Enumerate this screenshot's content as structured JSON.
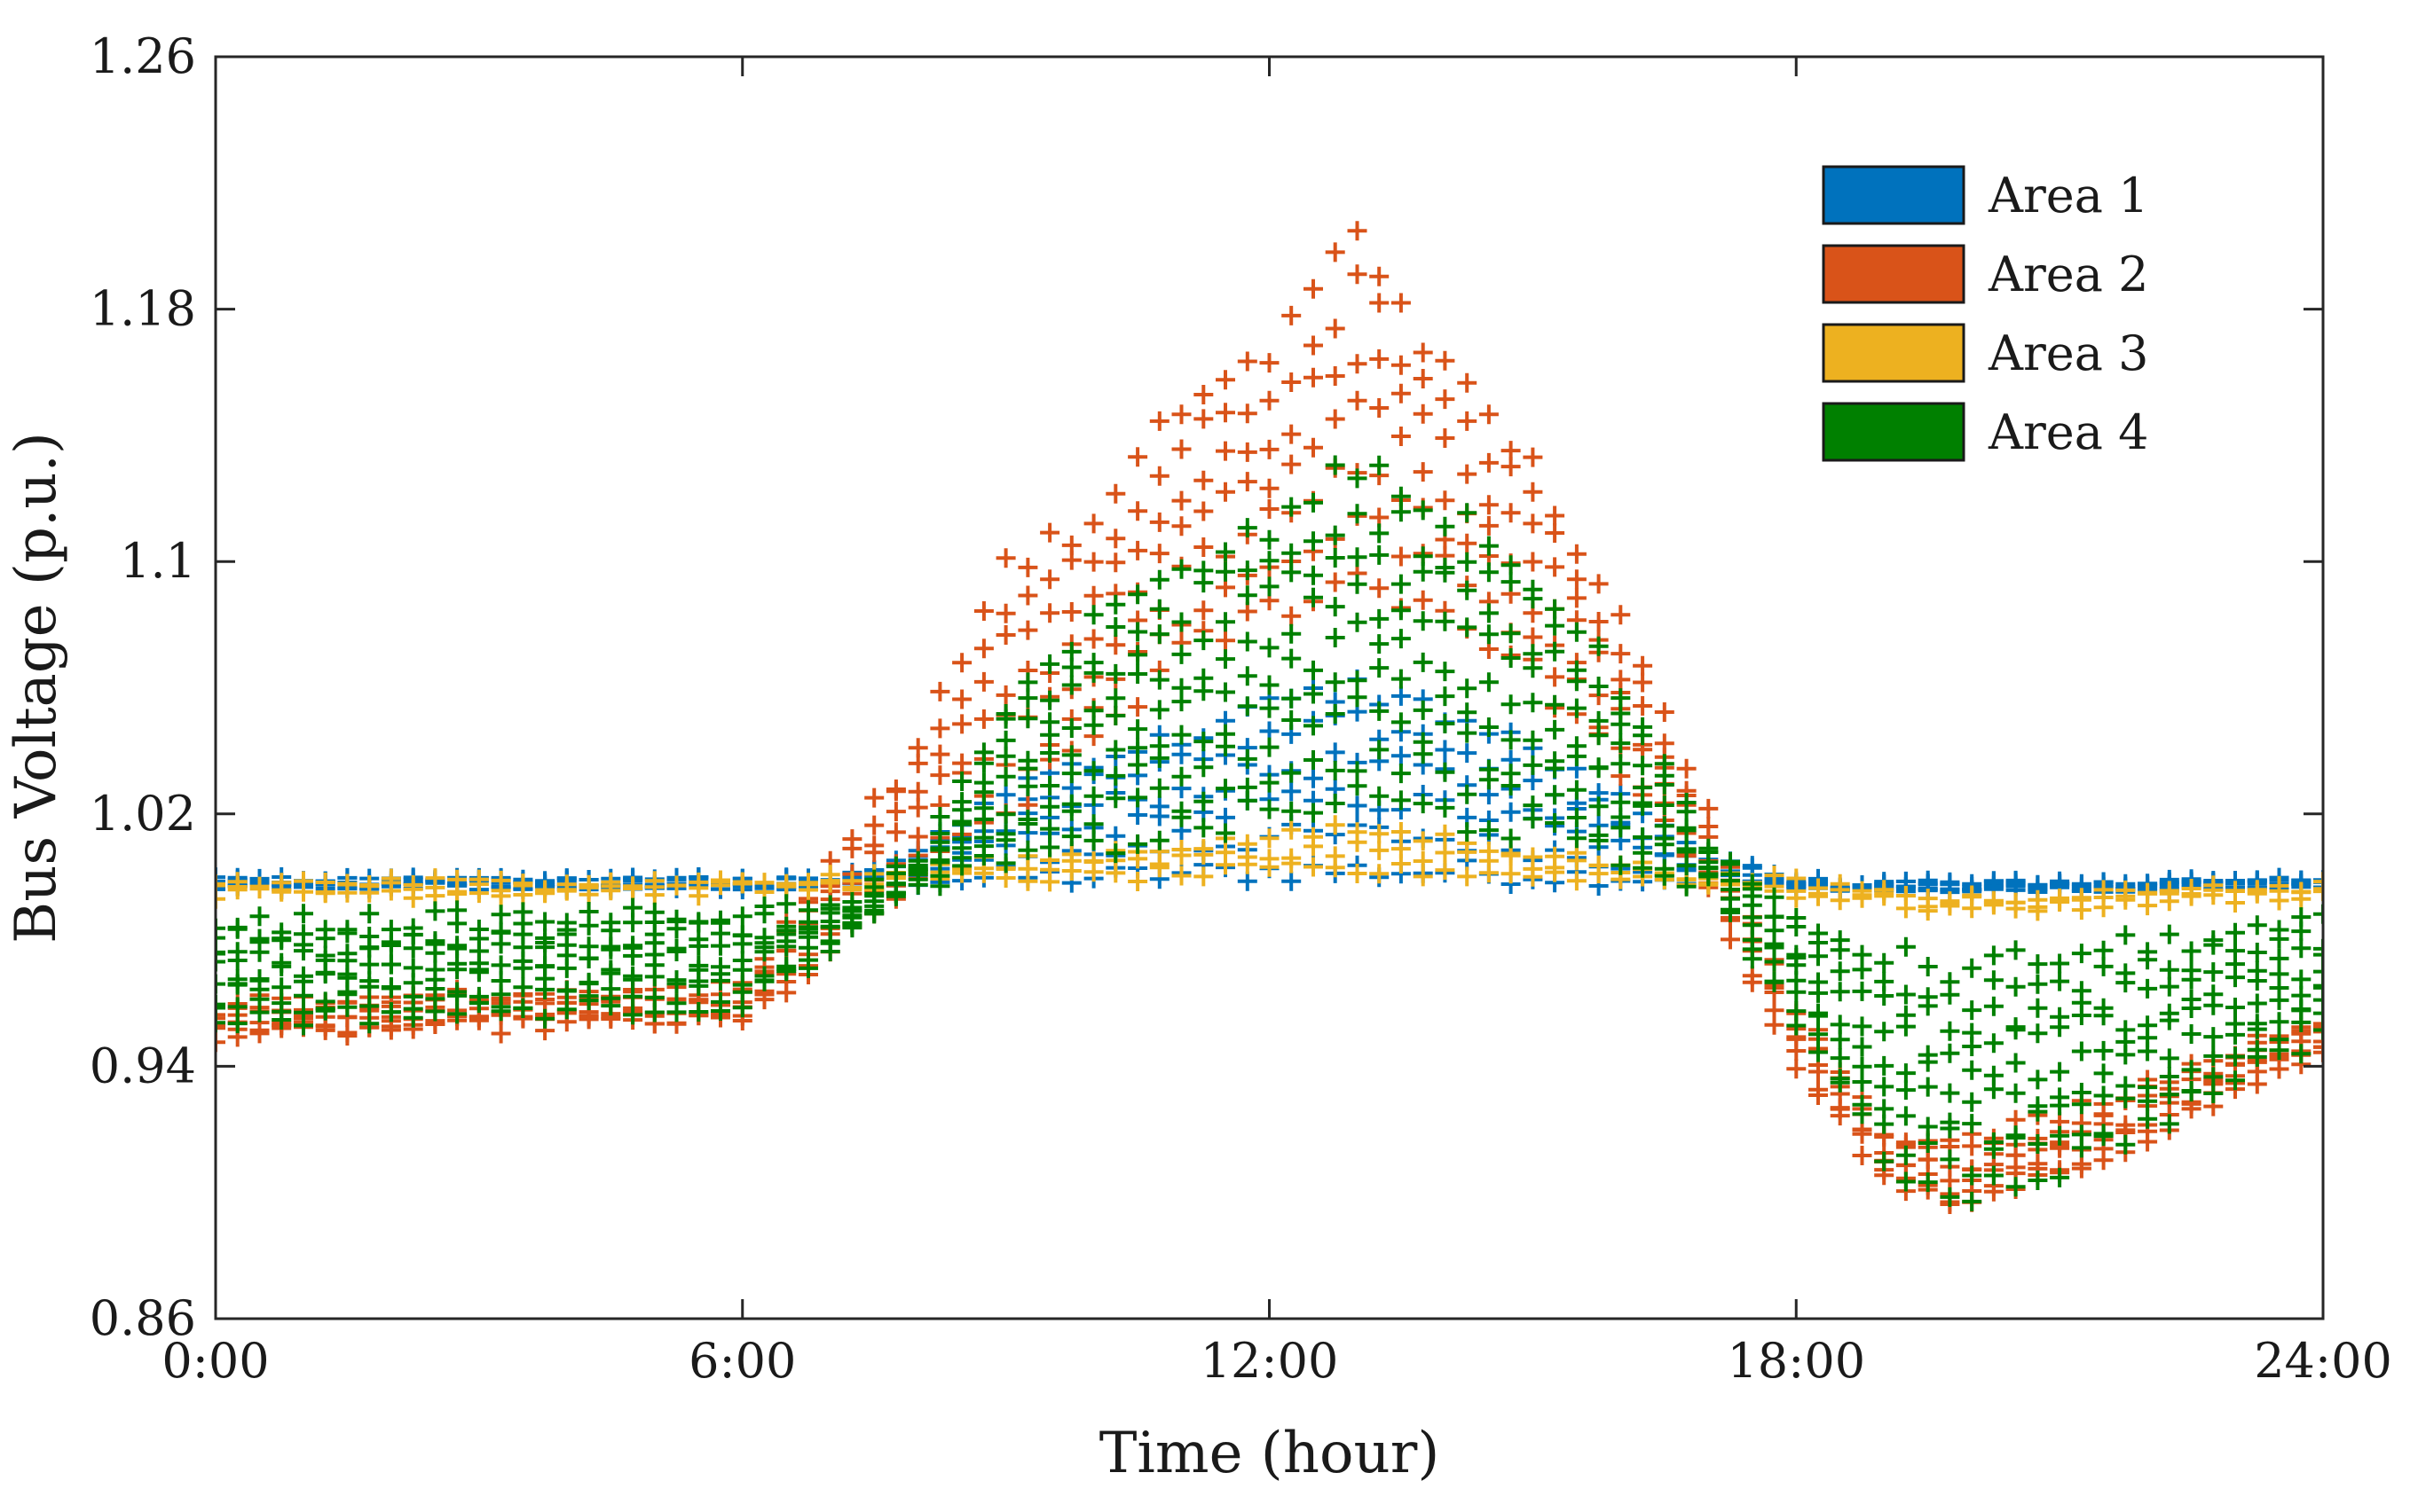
{
  "chart_data": {
    "type": "scatter",
    "marker": "plus",
    "xlabel": "Time (hour)",
    "ylabel": "Bus Voltage (p.u.)",
    "xlim": [
      0,
      24
    ],
    "ylim": [
      0.86,
      1.26
    ],
    "x_ticks": [
      0,
      6,
      12,
      18,
      24
    ],
    "x_tick_labels": [
      "0:00",
      "6:00",
      "12:00",
      "18:00",
      "24:00"
    ],
    "y_ticks": [
      0.86,
      0.94,
      1.02,
      1.1,
      1.18,
      1.26
    ],
    "y_tick_labels": [
      "0.86",
      "0.94",
      "1.02",
      "1.1",
      "1.18",
      "1.26"
    ],
    "grid": false,
    "legend_position": "top-right",
    "x_step_hours": 0.25,
    "series": [
      {
        "name": "Area 1",
        "color": "#0072BD",
        "bus_count": 6,
        "profile_hours": [
          0,
          6,
          7,
          8,
          9,
          10,
          11,
          12,
          13,
          14,
          15,
          16,
          17,
          18,
          19,
          19.8,
          21,
          24
        ],
        "envelope_low": [
          0.998,
          0.998,
          0.998,
          0.999,
          1.0,
          1.0,
          1.001,
          1.002,
          1.002,
          1.002,
          1.001,
          1.0,
          0.999,
          0.998,
          0.997,
          0.997,
          0.997,
          0.998
        ],
        "envelope_high": [
          0.998,
          0.998,
          0.998,
          1.007,
          1.028,
          1.038,
          1.044,
          1.054,
          1.06,
          1.052,
          1.04,
          1.024,
          1.005,
          0.998,
          0.997,
          0.997,
          0.997,
          0.998
        ]
      },
      {
        "name": "Area 2",
        "color": "#D95319",
        "bus_count": 7,
        "profile_hours": [
          0,
          6,
          7,
          8,
          9,
          10,
          11,
          12,
          13,
          14,
          15,
          16,
          17,
          18,
          19,
          19.8,
          21,
          24
        ],
        "envelope_low": [
          0.95,
          0.955,
          0.975,
          1.0,
          1.02,
          1.045,
          1.07,
          1.085,
          1.095,
          1.085,
          1.065,
          1.035,
          0.995,
          0.94,
          0.905,
          0.895,
          0.905,
          0.945
        ],
        "envelope_high": [
          0.96,
          0.965,
          1.005,
          1.04,
          1.1,
          1.11,
          1.15,
          1.165,
          1.205,
          1.16,
          1.13,
          1.08,
          1.02,
          0.96,
          0.92,
          0.915,
          0.925,
          0.955
        ]
      },
      {
        "name": "Area 3",
        "color": "#EDB120",
        "bus_count": 3,
        "profile_hours": [
          0,
          6,
          7,
          8,
          9,
          10,
          11,
          12,
          13,
          14,
          15,
          16,
          17,
          18,
          19,
          19.8,
          21,
          24
        ],
        "envelope_low": [
          0.995,
          0.996,
          0.997,
          0.999,
          1.0,
          1.0,
          1.001,
          1.002,
          1.002,
          1.002,
          1.001,
          1.0,
          0.999,
          0.995,
          0.992,
          0.99,
          0.991,
          0.995
        ],
        "envelope_high": [
          0.998,
          0.998,
          0.999,
          1.002,
          1.005,
          1.007,
          1.01,
          1.012,
          1.015,
          1.012,
          1.008,
          1.004,
          1.0,
          0.998,
          0.995,
          0.993,
          0.994,
          0.997
        ]
      },
      {
        "name": "Area 4",
        "color": "#008000",
        "bus_count": 9,
        "profile_hours": [
          0,
          6,
          7,
          8,
          9,
          10,
          11,
          12,
          13,
          14,
          15,
          16,
          17,
          18,
          19,
          19.8,
          21,
          24
        ],
        "envelope_low": [
          0.955,
          0.96,
          0.978,
          0.998,
          1.005,
          1.01,
          1.015,
          1.02,
          1.025,
          1.02,
          1.015,
          1.005,
          0.998,
          0.955,
          0.91,
          0.9,
          0.908,
          0.95
        ],
        "envelope_high": [
          0.985,
          0.988,
          0.99,
          1.005,
          1.055,
          1.08,
          1.095,
          1.11,
          1.13,
          1.115,
          1.095,
          1.06,
          1.01,
          0.985,
          0.975,
          0.97,
          0.975,
          0.985
        ]
      }
    ]
  }
}
